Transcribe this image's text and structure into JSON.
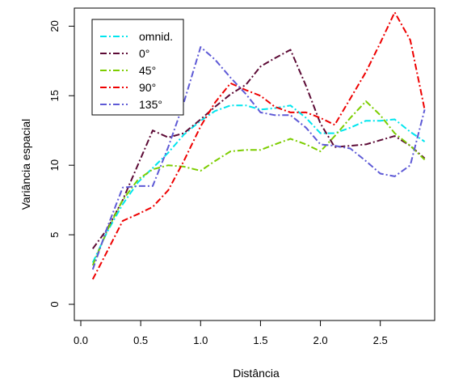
{
  "chart_data": {
    "type": "line",
    "title": "",
    "xlabel": "Distância",
    "ylabel": "Variância espacial",
    "xlim": [
      0,
      2.9
    ],
    "ylim": [
      0,
      21.3
    ],
    "x_ticks": [
      "0.0",
      "0.5",
      "1.0",
      "1.5",
      "2.0",
      "2.5"
    ],
    "x_tick_values": [
      0,
      0.5,
      1.0,
      1.5,
      2.0,
      2.5
    ],
    "y_ticks": [
      "0",
      "5",
      "10",
      "15",
      "20"
    ],
    "y_tick_values": [
      0,
      5,
      10,
      15,
      20
    ],
    "grid": false,
    "legend_position": "top-left",
    "series": [
      {
        "name": "omnid.",
        "color": "#00e5ee",
        "x": [
          0.1,
          0.22,
          0.35,
          0.48,
          0.6,
          0.73,
          0.86,
          1.0,
          1.12,
          1.25,
          1.38,
          1.5,
          1.62,
          1.75,
          1.88,
          2.0,
          2.12,
          2.25,
          2.38,
          2.5,
          2.62,
          2.75,
          2.87
        ],
        "values": [
          3.0,
          5.2,
          7.2,
          8.8,
          9.8,
          10.9,
          12.2,
          13.2,
          13.9,
          14.3,
          14.3,
          14.0,
          14.1,
          14.3,
          13.4,
          12.3,
          12.3,
          12.7,
          13.2,
          13.2,
          13.3,
          12.4,
          11.7
        ]
      },
      {
        "name": "0°",
        "color": "#5c0a35",
        "x": [
          0.1,
          0.22,
          0.35,
          0.48,
          0.6,
          0.73,
          0.86,
          1.0,
          1.12,
          1.25,
          1.38,
          1.5,
          1.62,
          1.75,
          1.88,
          2.0,
          2.12,
          2.25,
          2.38,
          2.5,
          2.62,
          2.75,
          2.87
        ],
        "values": [
          4.0,
          5.4,
          7.5,
          10.1,
          12.5,
          12.0,
          12.3,
          13.3,
          14.2,
          15.1,
          15.8,
          17.1,
          17.7,
          18.3,
          15.7,
          13.0,
          11.3,
          11.4,
          11.5,
          11.8,
          12.1,
          11.4,
          10.5
        ]
      },
      {
        "name": "45°",
        "color": "#7ccd00",
        "x": [
          0.1,
          0.22,
          0.35,
          0.48,
          0.6,
          0.73,
          0.86,
          1.0,
          1.12,
          1.25,
          1.38,
          1.5,
          1.62,
          1.75,
          1.88,
          2.0,
          2.12,
          2.25,
          2.38,
          2.5,
          2.62,
          2.75,
          2.87
        ],
        "values": [
          2.8,
          5.3,
          7.5,
          9.0,
          9.7,
          10.0,
          9.9,
          9.6,
          10.3,
          11.0,
          11.1,
          11.1,
          11.5,
          11.9,
          11.5,
          11.0,
          12.1,
          13.4,
          14.6,
          13.6,
          12.3,
          11.4,
          10.4
        ]
      },
      {
        "name": "90°",
        "color": "#ee0000",
        "x": [
          0.1,
          0.22,
          0.35,
          0.48,
          0.6,
          0.73,
          0.86,
          1.0,
          1.12,
          1.25,
          1.38,
          1.5,
          1.62,
          1.75,
          1.88,
          2.0,
          2.12,
          2.25,
          2.38,
          2.5,
          2.62,
          2.75,
          2.87
        ],
        "values": [
          1.8,
          3.8,
          6.0,
          6.5,
          7.0,
          8.2,
          10.3,
          12.8,
          14.5,
          15.9,
          15.4,
          15.0,
          14.2,
          13.8,
          13.8,
          13.4,
          12.9,
          14.8,
          16.7,
          18.8,
          21.0,
          19.0,
          14.0
        ]
      },
      {
        "name": "135°",
        "color": "#5e5ad6",
        "x": [
          0.1,
          0.22,
          0.35,
          0.48,
          0.6,
          0.73,
          0.86,
          1.0,
          1.12,
          1.25,
          1.38,
          1.5,
          1.62,
          1.75,
          1.88,
          2.0,
          2.12,
          2.25,
          2.38,
          2.5,
          2.62,
          2.75,
          2.87
        ],
        "values": [
          2.5,
          5.5,
          8.4,
          8.5,
          8.5,
          11.3,
          14.5,
          18.5,
          17.6,
          16.3,
          15.1,
          13.8,
          13.6,
          13.6,
          12.7,
          11.5,
          11.4,
          11.2,
          10.3,
          9.4,
          9.2,
          10.0,
          14.0
        ]
      }
    ]
  }
}
